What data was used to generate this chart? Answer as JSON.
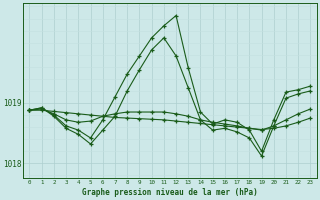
{
  "title": "Graphe pression niveau de la mer (hPa)",
  "background_color": "#cde8e8",
  "line_color": "#1a5c1a",
  "grid_major_color": "#aecfcf",
  "grid_minor_color": "#c4e0e0",
  "xlim": [
    -0.5,
    23.5
  ],
  "ylim": [
    1017.75,
    1020.65
  ],
  "yticks": [
    1018,
    1019
  ],
  "xticks": [
    0,
    1,
    2,
    3,
    4,
    5,
    6,
    7,
    8,
    9,
    10,
    11,
    12,
    13,
    14,
    15,
    16,
    17,
    18,
    19,
    20,
    21,
    22,
    23
  ],
  "series": [
    {
      "x": [
        0,
        1,
        2,
        3,
        4,
        5,
        6,
        7,
        8,
        9,
        10,
        11,
        12,
        13,
        14,
        15,
        16,
        17,
        18,
        19,
        20,
        21,
        22,
        23
      ],
      "y": [
        1018.88,
        1018.92,
        1018.8,
        1018.62,
        1018.55,
        1018.42,
        1018.72,
        1019.1,
        1019.48,
        1019.78,
        1020.08,
        1020.28,
        1020.45,
        1019.58,
        1018.85,
        1018.65,
        1018.72,
        1018.68,
        1018.55,
        1018.2,
        1018.72,
        1019.18,
        1019.22,
        1019.28
      ]
    },
    {
      "x": [
        0,
        1,
        2,
        3,
        4,
        5,
        6,
        7,
        8,
        9,
        10,
        11,
        12,
        13,
        14,
        15,
        16,
        17,
        18,
        19,
        20,
        21,
        22,
        23
      ],
      "y": [
        1018.88,
        1018.92,
        1018.78,
        1018.58,
        1018.48,
        1018.32,
        1018.55,
        1018.78,
        1019.2,
        1019.55,
        1019.88,
        1020.08,
        1019.78,
        1019.25,
        1018.72,
        1018.55,
        1018.58,
        1018.52,
        1018.42,
        1018.12,
        1018.62,
        1019.08,
        1019.15,
        1019.2
      ]
    },
    {
      "x": [
        0,
        1,
        2,
        3,
        4,
        5,
        6,
        7,
        8,
        9,
        10,
        11,
        12,
        13,
        14,
        15,
        16,
        17,
        18,
        19,
        20,
        21,
        22,
        23
      ],
      "y": [
        1018.88,
        1018.9,
        1018.82,
        1018.72,
        1018.68,
        1018.7,
        1018.78,
        1018.82,
        1018.85,
        1018.85,
        1018.85,
        1018.85,
        1018.82,
        1018.78,
        1018.72,
        1018.68,
        1018.65,
        1018.62,
        1018.58,
        1018.55,
        1018.62,
        1018.72,
        1018.82,
        1018.9
      ]
    },
    {
      "x": [
        0,
        1,
        2,
        3,
        4,
        5,
        6,
        7,
        8,
        9,
        10,
        11,
        12,
        13,
        14,
        15,
        16,
        17,
        18,
        19,
        20,
        21,
        22,
        23
      ],
      "y": [
        1018.88,
        1018.88,
        1018.86,
        1018.84,
        1018.82,
        1018.8,
        1018.78,
        1018.76,
        1018.75,
        1018.74,
        1018.73,
        1018.72,
        1018.7,
        1018.68,
        1018.66,
        1018.64,
        1018.62,
        1018.6,
        1018.58,
        1018.56,
        1018.58,
        1018.62,
        1018.68,
        1018.75
      ]
    }
  ]
}
